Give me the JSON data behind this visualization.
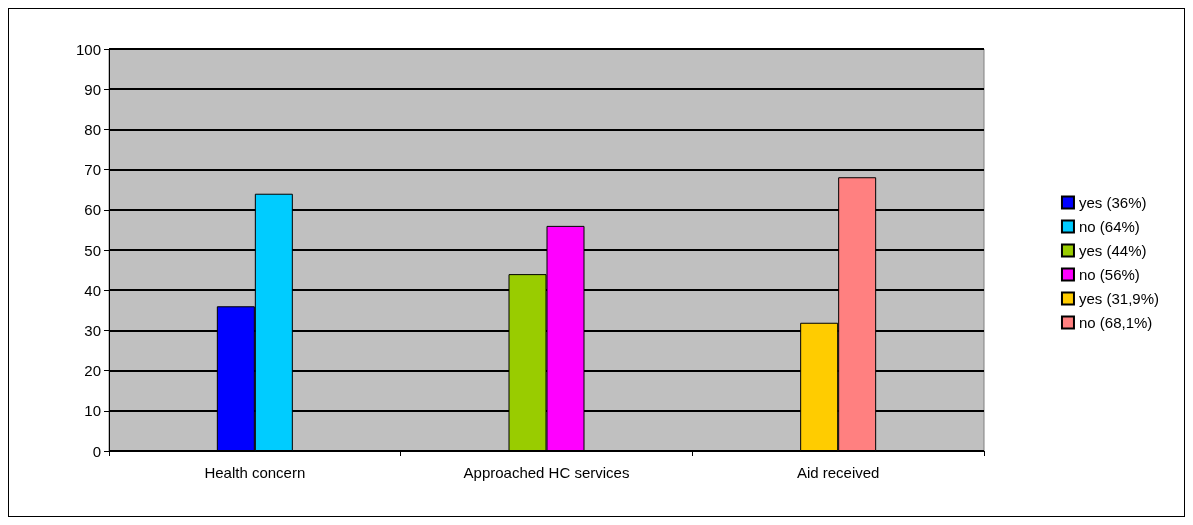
{
  "chart_data": {
    "type": "bar",
    "categories": [
      "Health concern",
      "Approached HC services",
      "Aid received"
    ],
    "series": [
      {
        "name": "yes (36%)",
        "color": "#0000ff",
        "values": [
          36,
          null,
          null
        ]
      },
      {
        "name": "no (64%)",
        "color": "#00ccff",
        "values": [
          64,
          null,
          null
        ]
      },
      {
        "name": "yes (44%)",
        "color": "#99cc00",
        "values": [
          null,
          44,
          null
        ]
      },
      {
        "name": "no (56%)",
        "color": "#ff00ff",
        "values": [
          null,
          56,
          null
        ]
      },
      {
        "name": "yes (31,9%)",
        "color": "#ffcc00",
        "values": [
          null,
          null,
          31.9
        ]
      },
      {
        "name": "no (68,1%)",
        "color": "#ff8080",
        "values": [
          null,
          null,
          68.1
        ]
      }
    ],
    "ylim": [
      0,
      100
    ],
    "yticks": [
      0,
      10,
      20,
      30,
      40,
      50,
      60,
      70,
      80,
      90,
      100
    ],
    "grid": "y",
    "legend": "right"
  }
}
